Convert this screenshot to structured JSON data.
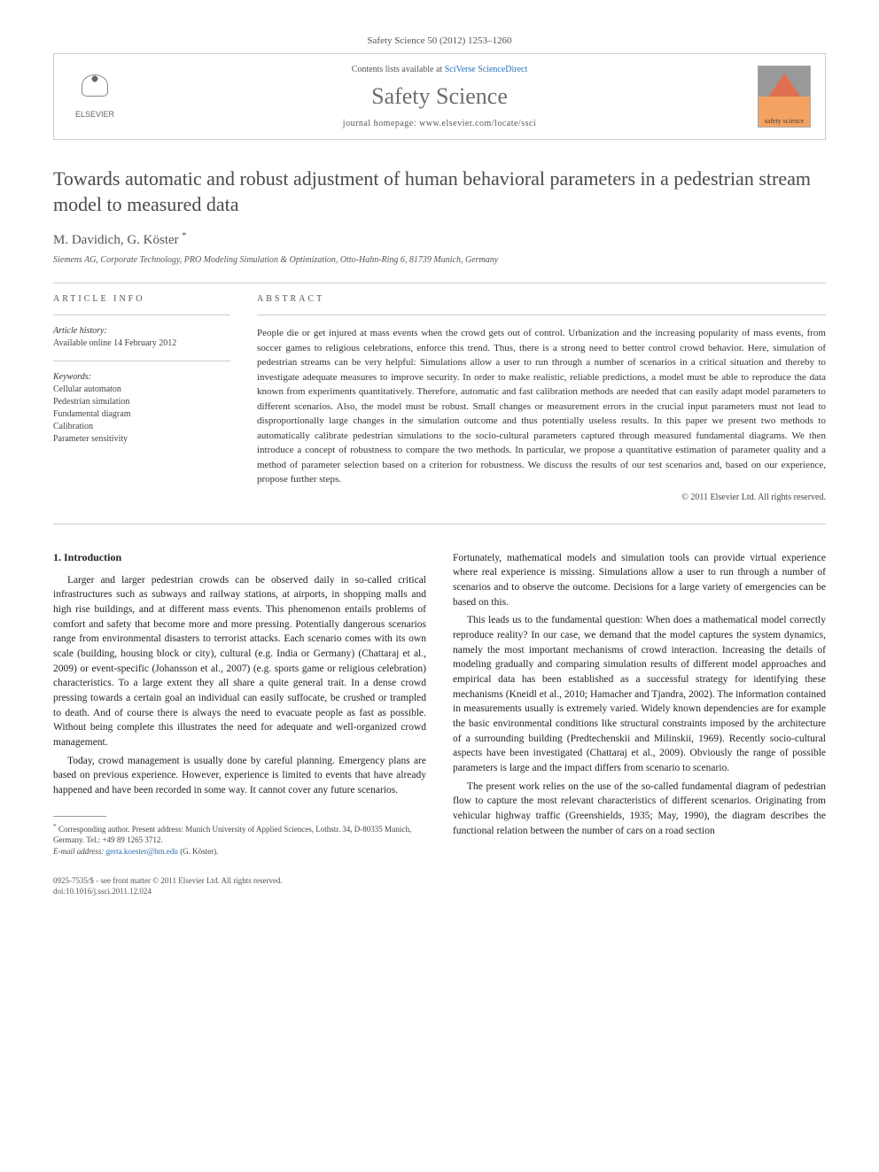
{
  "header": {
    "citation": "Safety Science 50 (2012) 1253–1260",
    "contents_prefix": "Contents lists available at ",
    "contents_link": "SciVerse ScienceDirect",
    "journal_name": "Safety Science",
    "homepage_prefix": "journal homepage: ",
    "homepage_url": "www.elsevier.com/locate/ssci",
    "publisher_label": "ELSEVIER",
    "badge_text": "safety science"
  },
  "article": {
    "title": "Towards automatic and robust adjustment of human behavioral parameters in a pedestrian stream model to measured data",
    "authors": "M. Davidich, G. Köster",
    "corr_marker": "*",
    "affiliation": "Siemens AG, Corporate Technology, PRO Modeling Simulation & Optimization, Otto-Hahn-Ring 6, 81739 Munich, Germany"
  },
  "info": {
    "heading": "ARTICLE INFO",
    "history_label": "Article history:",
    "history_text": "Available online 14 February 2012",
    "keywords_label": "Keywords:",
    "keywords": "Cellular automaton\nPedestrian simulation\nFundamental diagram\nCalibration\nParameter sensitivity"
  },
  "abstract": {
    "heading": "ABSTRACT",
    "text": "People die or get injured at mass events when the crowd gets out of control. Urbanization and the increasing popularity of mass events, from soccer games to religious celebrations, enforce this trend. Thus, there is a strong need to better control crowd behavior. Here, simulation of pedestrian streams can be very helpful: Simulations allow a user to run through a number of scenarios in a critical situation and thereby to investigate adequate measures to improve security. In order to make realistic, reliable predictions, a model must be able to reproduce the data known from experiments quantitatively. Therefore, automatic and fast calibration methods are needed that can easily adapt model parameters to different scenarios. Also, the model must be robust. Small changes or measurement errors in the crucial input parameters must not lead to disproportionally large changes in the simulation outcome and thus potentially useless results. In this paper we present two methods to automatically calibrate pedestrian simulations to the socio-cultural parameters captured through measured fundamental diagrams. We then introduce a concept of robustness to compare the two methods. In particular, we propose a quantitative estimation of parameter quality and a method of parameter selection based on a criterion for robustness. We discuss the results of our test scenarios and, based on our experience, propose further steps.",
    "copyright": "© 2011 Elsevier Ltd. All rights reserved."
  },
  "body": {
    "section_heading": "1. Introduction",
    "left_paras": [
      "Larger and larger pedestrian crowds can be observed daily in so-called critical infrastructures such as subways and railway stations, at airports, in shopping malls and high rise buildings, and at different mass events. This phenomenon entails problems of comfort and safety that become more and more pressing. Potentially dangerous scenarios range from environmental disasters to terrorist attacks. Each scenario comes with its own scale (building, housing block or city), cultural (e.g. India or Germany) (Chattaraj et al., 2009) or event-specific (Johansson et al., 2007) (e.g. sports game or religious celebration) characteristics. To a large extent they all share a quite general trait. In a dense crowd pressing towards a certain goal an individual can easily suffocate, be crushed or trampled to death. And of course there is always the need to evacuate people as fast as possible. Without being complete this illustrates the need for adequate and well-organized crowd management.",
      "Today, crowd management is usually done by careful planning. Emergency plans are based on previous experience. However, experience is limited to events that have already happened and have been recorded in some way. It cannot cover any future scenarios."
    ],
    "right_paras": [
      "Fortunately, mathematical models and simulation tools can provide virtual experience where real experience is missing. Simulations allow a user to run through a number of scenarios and to observe the outcome. Decisions for a large variety of emergencies can be based on this.",
      "This leads us to the fundamental question: When does a mathematical model correctly reproduce reality? In our case, we demand that the model captures the system dynamics, namely the most important mechanisms of crowd interaction. Increasing the details of modeling gradually and comparing simulation results of different model approaches and empirical data has been established as a successful strategy for identifying these mechanisms (Kneidl et al., 2010; Hamacher and Tjandra, 2002). The information contained in measurements usually is extremely varied. Widely known dependencies are for example the basic environmental conditions like structural constraints imposed by the architecture of a surrounding building (Predtechenskii and Milinskii, 1969). Recently socio-cultural aspects have been investigated (Chattaraj et al., 2009). Obviously the range of possible parameters is large and the impact differs from scenario to scenario.",
      "The present work relies on the use of the so-called fundamental diagram of pedestrian flow to capture the most relevant characteristics of different scenarios. Originating from vehicular highway traffic (Greenshields, 1935; May, 1990), the diagram describes the functional relation between the number of cars on a road section"
    ]
  },
  "footnote": {
    "marker": "*",
    "text": "Corresponding author. Present address: Munich University of Applied Sciences, Lothstr. 34, D-80335 Munich, Germany. Tel.: +49 89 1265 3712.",
    "email_label": "E-mail address: ",
    "email": "gerta.koester@hm.edu",
    "email_tail": " (G. Köster)."
  },
  "footer": {
    "line1": "0925-7535/$ - see front matter © 2011 Elsevier Ltd. All rights reserved.",
    "line2": "doi:10.1016/j.ssci.2011.12.024"
  },
  "colors": {
    "link": "#2a6fb5",
    "text": "#333333",
    "muted": "#555555",
    "border": "#cccccc"
  }
}
